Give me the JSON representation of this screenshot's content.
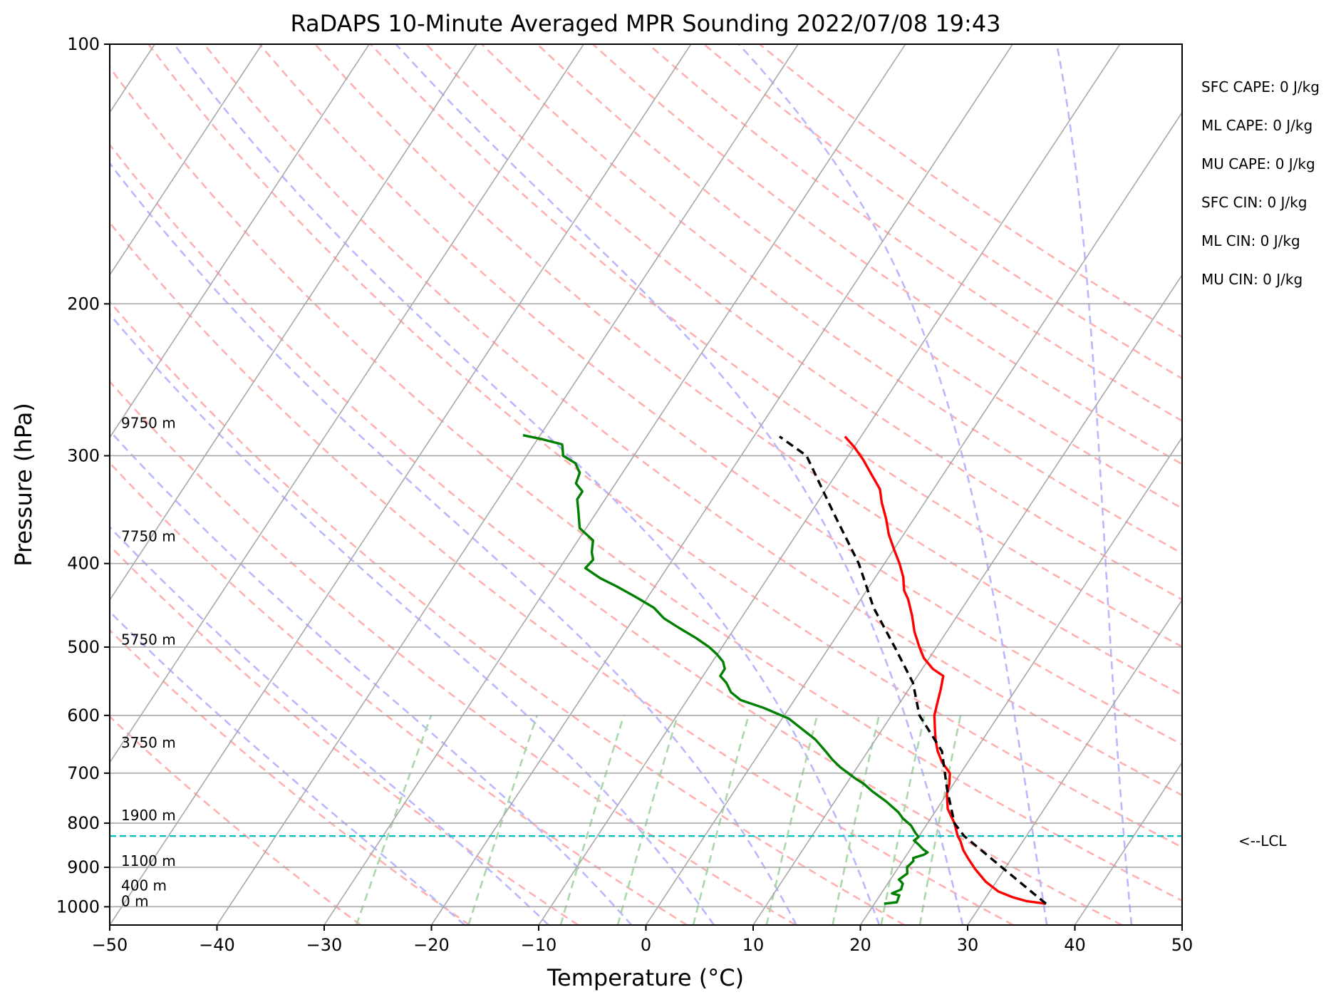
{
  "chart_data": {
    "type": "line",
    "title": "RaDAPS 10-Minute Averaged MPR Sounding 2022/07/08 19:43",
    "xlabel": "Temperature (°C)",
    "ylabel": "Pressure (hPa)",
    "xlim": [
      -50,
      50
    ],
    "ylim": [
      1050,
      100
    ],
    "y_scale": "log",
    "skew_t": true,
    "x_ticks": [
      "−50",
      "−40",
      "−30",
      "−20",
      "−10",
      "0",
      "10",
      "20",
      "30",
      "40",
      "50"
    ],
    "x_tick_values": [
      -50,
      -40,
      -30,
      -20,
      -10,
      0,
      10,
      20,
      30,
      40,
      50
    ],
    "y_ticks": [
      "100",
      "200",
      "300",
      "400",
      "500",
      "600",
      "700",
      "800",
      "900",
      "1000"
    ],
    "y_tick_values": [
      100,
      200,
      300,
      400,
      500,
      600,
      700,
      800,
      900,
      1000
    ],
    "grid": true,
    "colors": {
      "temperature": "#ff0000",
      "dewpoint": "#008000",
      "parcel": "#000000",
      "lcl": "#00bfbf",
      "dry_adiabat": "#ffb0b0",
      "moist_adiabat": "#b8b8ff",
      "mixing_ratio": "#a8d8a8",
      "isotherm": "#a8a8a8",
      "isobar": "#a8a8a8"
    },
    "series": [
      {
        "key": "temperature",
        "points": [
          {
            "t": 36.0,
            "p": 992
          },
          {
            "t": 34.0,
            "p": 985
          },
          {
            "t": 32.5,
            "p": 975
          },
          {
            "t": 30.8,
            "p": 960
          },
          {
            "t": 29.0,
            "p": 935
          },
          {
            "t": 27.3,
            "p": 905
          },
          {
            "t": 26.0,
            "p": 880
          },
          {
            "t": 25.0,
            "p": 860
          },
          {
            "t": 24.2,
            "p": 840
          },
          {
            "t": 23.6,
            "p": 828
          },
          {
            "t": 22.5,
            "p": 800
          },
          {
            "t": 21.0,
            "p": 770
          },
          {
            "t": 20.0,
            "p": 740
          },
          {
            "t": 19.6,
            "p": 720
          },
          {
            "t": 19.0,
            "p": 700
          },
          {
            "t": 17.6,
            "p": 680
          },
          {
            "t": 16.5,
            "p": 660
          },
          {
            "t": 15.6,
            "p": 640
          },
          {
            "t": 14.8,
            "p": 620
          },
          {
            "t": 14.0,
            "p": 600
          },
          {
            "t": 13.5,
            "p": 580
          },
          {
            "t": 13.0,
            "p": 560
          },
          {
            "t": 12.4,
            "p": 540
          },
          {
            "t": 11.0,
            "p": 530
          },
          {
            "t": 9.5,
            "p": 515
          },
          {
            "t": 8.4,
            "p": 500
          },
          {
            "t": 7.0,
            "p": 480
          },
          {
            "t": 5.8,
            "p": 460
          },
          {
            "t": 4.4,
            "p": 440
          },
          {
            "t": 3.5,
            "p": 430
          },
          {
            "t": 2.6,
            "p": 415
          },
          {
            "t": 1.4,
            "p": 400
          },
          {
            "t": 0.0,
            "p": 385
          },
          {
            "t": -1.4,
            "p": 370
          },
          {
            "t": -2.6,
            "p": 355
          },
          {
            "t": -4.0,
            "p": 340
          },
          {
            "t": -5.0,
            "p": 328
          },
          {
            "t": -6.6,
            "p": 316
          },
          {
            "t": -8.4,
            "p": 303
          },
          {
            "t": -10.0,
            "p": 293
          },
          {
            "t": -11.5,
            "p": 285
          }
        ]
      },
      {
        "key": "dewpoint",
        "points": [
          {
            "t": 20.9,
            "p": 992
          },
          {
            "t": 22.0,
            "p": 988
          },
          {
            "t": 21.8,
            "p": 970
          },
          {
            "t": 21.0,
            "p": 965
          },
          {
            "t": 21.6,
            "p": 955
          },
          {
            "t": 21.4,
            "p": 940
          },
          {
            "t": 20.8,
            "p": 930
          },
          {
            "t": 21.2,
            "p": 915
          },
          {
            "t": 20.8,
            "p": 900
          },
          {
            "t": 21.0,
            "p": 885
          },
          {
            "t": 20.8,
            "p": 878
          },
          {
            "t": 21.6,
            "p": 870
          },
          {
            "t": 21.8,
            "p": 865
          },
          {
            "t": 21.2,
            "p": 858
          },
          {
            "t": 20.4,
            "p": 846
          },
          {
            "t": 19.8,
            "p": 838
          },
          {
            "t": 20.0,
            "p": 830
          },
          {
            "t": 19.4,
            "p": 820
          },
          {
            "t": 18.6,
            "p": 805
          },
          {
            "t": 17.4,
            "p": 790
          },
          {
            "t": 16.6,
            "p": 777
          },
          {
            "t": 14.8,
            "p": 755
          },
          {
            "t": 12.9,
            "p": 735
          },
          {
            "t": 11.6,
            "p": 720
          },
          {
            "t": 10.5,
            "p": 710
          },
          {
            "t": 8.5,
            "p": 690
          },
          {
            "t": 7.2,
            "p": 675
          },
          {
            "t": 6.2,
            "p": 662
          },
          {
            "t": 4.4,
            "p": 640
          },
          {
            "t": 2.8,
            "p": 625
          },
          {
            "t": 0.6,
            "p": 605
          },
          {
            "t": -2.4,
            "p": 588
          },
          {
            "t": -5.0,
            "p": 576
          },
          {
            "t": -6.4,
            "p": 564
          },
          {
            "t": -7.4,
            "p": 550
          },
          {
            "t": -8.4,
            "p": 540
          },
          {
            "t": -8.4,
            "p": 530
          },
          {
            "t": -9.0,
            "p": 520
          },
          {
            "t": -10.0,
            "p": 510
          },
          {
            "t": -11.2,
            "p": 500
          },
          {
            "t": -13.0,
            "p": 488
          },
          {
            "t": -15.2,
            "p": 475
          },
          {
            "t": -17.2,
            "p": 463
          },
          {
            "t": -18.8,
            "p": 450
          },
          {
            "t": -21.4,
            "p": 436
          },
          {
            "t": -23.6,
            "p": 425
          },
          {
            "t": -25.6,
            "p": 416
          },
          {
            "t": -27.6,
            "p": 405
          },
          {
            "t": -27.4,
            "p": 396
          },
          {
            "t": -28.0,
            "p": 388
          },
          {
            "t": -28.6,
            "p": 376
          },
          {
            "t": -30.6,
            "p": 364
          },
          {
            "t": -31.6,
            "p": 350
          },
          {
            "t": -32.6,
            "p": 337
          },
          {
            "t": -32.6,
            "p": 330
          },
          {
            "t": -33.7,
            "p": 323
          },
          {
            "t": -34.0,
            "p": 314
          },
          {
            "t": -35.0,
            "p": 306
          },
          {
            "t": -36.6,
            "p": 300
          },
          {
            "t": -37.2,
            "p": 293
          },
          {
            "t": -37.4,
            "p": 291
          },
          {
            "t": -39.6,
            "p": 287
          },
          {
            "t": -41.6,
            "p": 284
          }
        ]
      },
      {
        "key": "parcel",
        "points": [
          {
            "t": 36.0,
            "p": 992
          },
          {
            "t": 30.0,
            "p": 905
          },
          {
            "t": 24.2,
            "p": 828
          },
          {
            "t": 22.5,
            "p": 800
          },
          {
            "t": 19.7,
            "p": 730
          },
          {
            "t": 16.9,
            "p": 660
          },
          {
            "t": 12.6,
            "p": 600
          },
          {
            "t": 10.0,
            "p": 550
          },
          {
            "t": 6.1,
            "p": 500
          },
          {
            "t": 1.7,
            "p": 450
          },
          {
            "t": -2.4,
            "p": 400
          },
          {
            "t": -7.8,
            "p": 350
          },
          {
            "t": -13.9,
            "p": 300
          },
          {
            "t": -17.6,
            "p": 285
          }
        ]
      }
    ],
    "lcl_pressure": 828,
    "lcl_label": "<--LCL",
    "height_labels": [
      "9750 m",
      "7750 m",
      "5750 m",
      "3750 m",
      "1900 m",
      "1100 m",
      "400 m",
      "0 m"
    ],
    "height_pressures": [
      275,
      372,
      490,
      645,
      783,
      885,
      945,
      985
    ],
    "indices": [
      "SFC CAPE: 0 J/kg",
      "ML CAPE: 0 J/kg",
      "MU CAPE: 0 J/kg",
      "SFC CIN: 0 J/kg",
      "ML CIN: 0 J/kg",
      "MU CIN: 0 J/kg"
    ]
  }
}
